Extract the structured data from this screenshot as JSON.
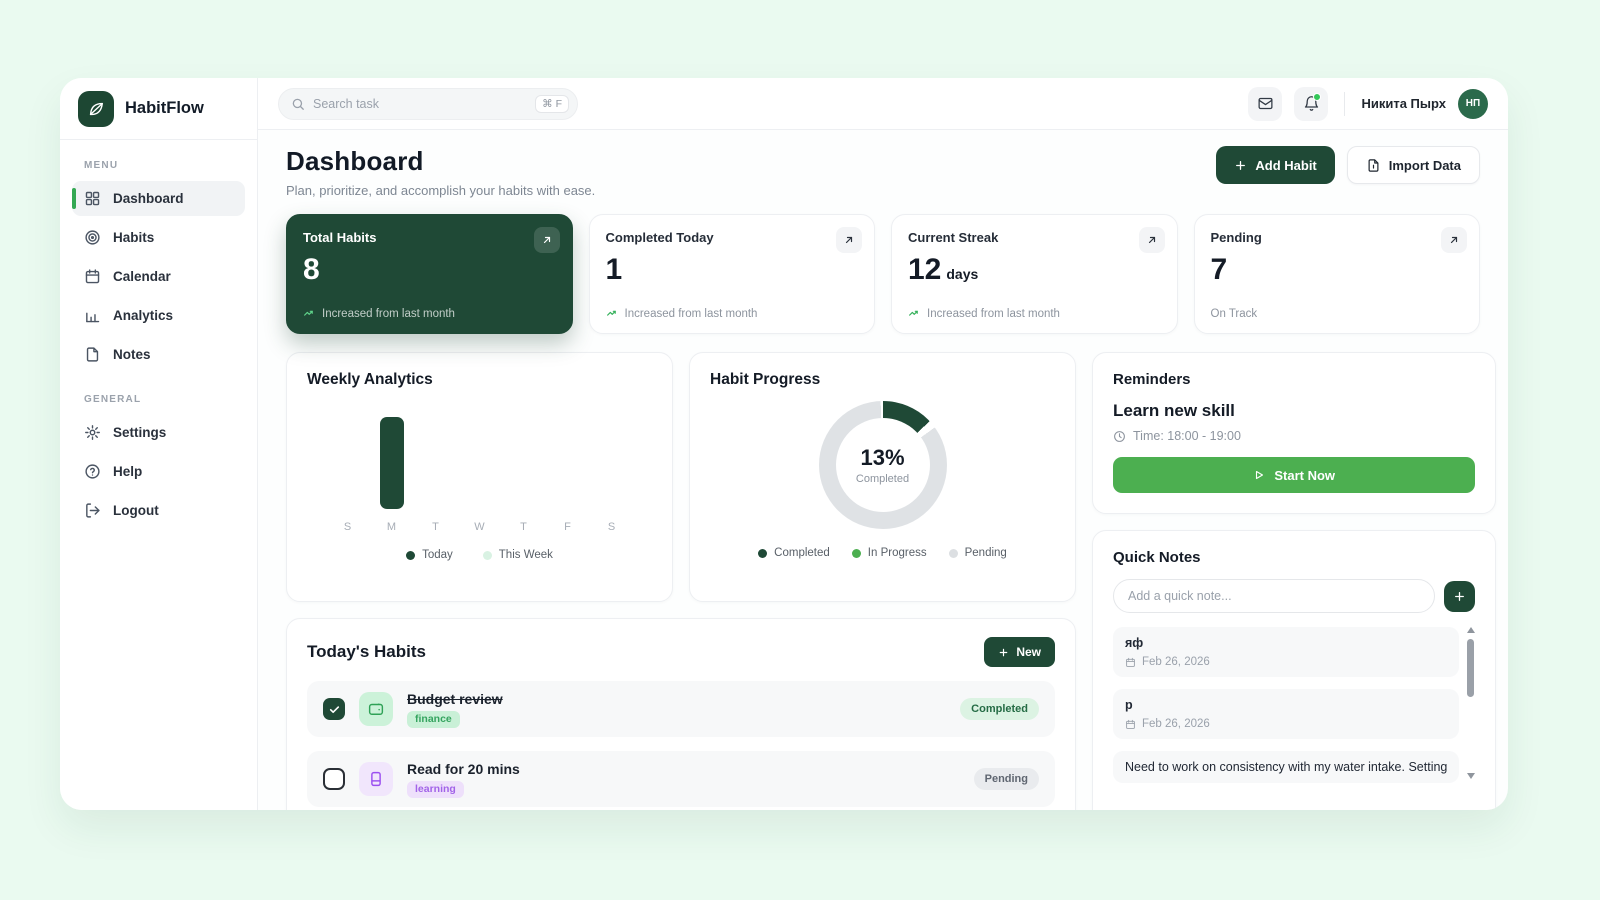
{
  "app": {
    "name": "HabitFlow"
  },
  "topbar": {
    "search_placeholder": "Search task",
    "search_shortcut": "⌘ F",
    "user_name": "Никита Пырх",
    "user_initials": "НП"
  },
  "sidebar": {
    "menu_label": "MENU",
    "general_label": "GENERAL",
    "items": [
      {
        "label": "Dashboard",
        "icon": "grid-icon",
        "active": true
      },
      {
        "label": "Habits",
        "icon": "target-icon"
      },
      {
        "label": "Calendar",
        "icon": "calendar-icon"
      },
      {
        "label": "Analytics",
        "icon": "bar-chart-icon"
      },
      {
        "label": "Notes",
        "icon": "file-icon"
      }
    ],
    "general_items": [
      {
        "label": "Settings",
        "icon": "gear-icon"
      },
      {
        "label": "Help",
        "icon": "help-icon"
      },
      {
        "label": "Logout",
        "icon": "logout-icon"
      }
    ]
  },
  "header": {
    "title": "Dashboard",
    "subtitle": "Plan, prioritize, and accomplish your habits with ease.",
    "add_habit_label": "Add Habit",
    "import_data_label": "Import Data"
  },
  "stats": [
    {
      "title": "Total Habits",
      "value": "8",
      "suffix": "",
      "note": "Increased from last month"
    },
    {
      "title": "Completed Today",
      "value": "1",
      "suffix": "",
      "note": "Increased from last month"
    },
    {
      "title": "Current Streak",
      "value": "12",
      "suffix": "days",
      "note": "Increased from last month"
    },
    {
      "title": "Pending",
      "value": "7",
      "suffix": "",
      "note": "On Track"
    }
  ],
  "weekly": {
    "title": "Weekly Analytics",
    "legend_today": "Today",
    "legend_week": "This Week"
  },
  "progress": {
    "title": "Habit Progress",
    "percent_label": "13%",
    "center_sub": "Completed",
    "legend_completed": "Completed",
    "legend_inprogress": "In Progress",
    "legend_pending": "Pending"
  },
  "reminders": {
    "title": "Reminders",
    "task": "Learn new skill",
    "time": "Time: 18:00 - 19:00",
    "button_label": "Start Now"
  },
  "quick_notes": {
    "title": "Quick Notes",
    "placeholder": "Add a quick note...",
    "notes": [
      {
        "text": "яф",
        "date": "Feb 26, 2026"
      },
      {
        "text": "р",
        "date": "Feb 26, 2026"
      },
      {
        "text": "Need to work on consistency with my water intake. Setting",
        "date": ""
      }
    ]
  },
  "habits": {
    "title": "Today's Habits",
    "new_label": "New",
    "items": [
      {
        "name": "Budget review",
        "tag": "finance",
        "status": "Completed",
        "done": true
      },
      {
        "name": "Read for 20 mins",
        "tag": "learning",
        "status": "Pending",
        "done": false
      }
    ]
  },
  "chart_data": [
    {
      "type": "bar",
      "title": "Weekly Analytics",
      "categories": [
        "S",
        "M",
        "T",
        "W",
        "T",
        "F",
        "S"
      ],
      "series": [
        {
          "name": "Today",
          "values": [
            0,
            1,
            0,
            0,
            0,
            0,
            0
          ]
        },
        {
          "name": "This Week",
          "values": [
            0,
            0,
            0,
            0,
            0,
            0,
            0
          ]
        }
      ],
      "ylim": [
        0,
        1
      ],
      "legend_position": "bottom",
      "grid": false
    },
    {
      "type": "pie",
      "title": "Habit Progress",
      "slices": [
        {
          "label": "Completed",
          "value": 13
        },
        {
          "label": "Pending",
          "value": 87
        }
      ],
      "center_text": "13%",
      "center_sub": "Completed",
      "legend": [
        "Completed",
        "In Progress",
        "Pending"
      ],
      "legend_position": "bottom"
    }
  ],
  "colors": {
    "dark_green": "#1f4936",
    "accent_green": "#4caf50",
    "light_mint_bg": "#eafaf0",
    "donut_gray": "#dfe2e5",
    "legend_week_dot": "#d9f2e3",
    "active_bar": "#34a853"
  }
}
